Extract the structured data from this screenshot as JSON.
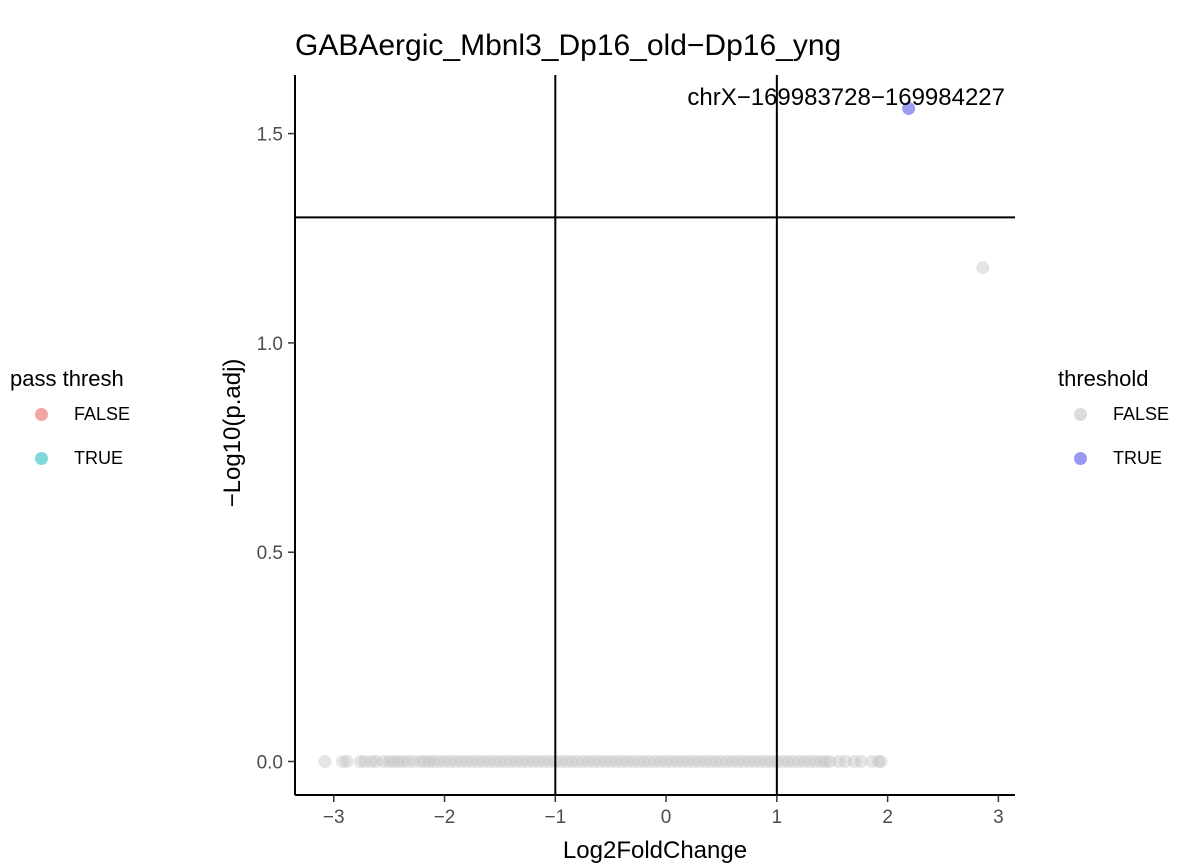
{
  "chart_data": {
    "type": "scatter",
    "title": "GABAergic_Mbnl3_Dp16_old−Dp16_yng",
    "xlabel": "Log2FoldChange",
    "ylabel": "−Log10(p.adj)",
    "xlim": [
      -3.35,
      3.15
    ],
    "ylim": [
      -0.08,
      1.64
    ],
    "x_ticks": [
      -3,
      -2,
      -1,
      0,
      1,
      2,
      3
    ],
    "x_tick_labels": [
      "−3",
      "−2",
      "−1",
      "0",
      "1",
      "2",
      "3"
    ],
    "y_ticks": [
      0.0,
      0.5,
      1.0,
      1.5
    ],
    "y_tick_labels": [
      "0.0",
      "0.5",
      "1.0",
      "1.5"
    ],
    "reference_lines": {
      "vertical": [
        -1,
        1
      ],
      "horizontal": [
        1.3
      ]
    },
    "grid": false,
    "colors": {
      "threshold_false": "#bdbdbd",
      "threshold_true": "#7b7bf0",
      "pass_false": "#f4a6a6",
      "pass_true": "#7fd9d9"
    },
    "points_false": {
      "x": [
        -3.08,
        -2.92,
        -2.88,
        -2.76,
        -2.72,
        -2.66,
        -2.62,
        -2.55,
        -2.5,
        -2.46,
        -2.42,
        -2.38,
        -2.33,
        -2.28,
        -2.22,
        -2.18,
        -2.14,
        -2.1,
        -2.05,
        -2.0,
        -1.95,
        -1.9,
        -1.85,
        -1.8,
        -1.75,
        -1.7,
        -1.65,
        -1.6,
        -1.55,
        -1.5,
        -1.45,
        -1.4,
        -1.35,
        -1.3,
        -1.25,
        -1.2,
        -1.15,
        -1.1,
        -1.05,
        -1.0,
        -0.95,
        -0.9,
        -0.85,
        -0.8,
        -0.75,
        -0.7,
        -0.65,
        -0.6,
        -0.55,
        -0.5,
        -0.45,
        -0.4,
        -0.35,
        -0.3,
        -0.25,
        -0.2,
        -0.15,
        -0.1,
        -0.05,
        0.0,
        0.05,
        0.1,
        0.15,
        0.2,
        0.25,
        0.3,
        0.35,
        0.4,
        0.45,
        0.5,
        0.55,
        0.6,
        0.65,
        0.7,
        0.75,
        0.8,
        0.85,
        0.9,
        0.95,
        1.0,
        1.05,
        1.1,
        1.15,
        1.2,
        1.25,
        1.3,
        1.35,
        1.4,
        1.44,
        1.48,
        1.56,
        1.62,
        1.7,
        1.76,
        1.86,
        1.92,
        1.94,
        2.86
      ],
      "y": [
        0.0,
        0.0,
        0.0,
        0.0,
        0.0,
        0.0,
        0.0,
        0.0,
        0.0,
        0.0,
        0.0,
        0.0,
        0.0,
        0.0,
        0.0,
        0.0,
        0.0,
        0.0,
        0.0,
        0.0,
        0.0,
        0.0,
        0.0,
        0.0,
        0.0,
        0.0,
        0.0,
        0.0,
        0.0,
        0.0,
        0.0,
        0.0,
        0.0,
        0.0,
        0.0,
        0.0,
        0.0,
        0.0,
        0.0,
        0.0,
        0.0,
        0.0,
        0.0,
        0.0,
        0.0,
        0.0,
        0.0,
        0.0,
        0.0,
        0.0,
        0.0,
        0.0,
        0.0,
        0.0,
        0.0,
        0.0,
        0.0,
        0.0,
        0.0,
        0.0,
        0.0,
        0.0,
        0.0,
        0.0,
        0.0,
        0.0,
        0.0,
        0.0,
        0.0,
        0.0,
        0.0,
        0.0,
        0.0,
        0.0,
        0.0,
        0.0,
        0.0,
        0.0,
        0.0,
        0.0,
        0.0,
        0.0,
        0.0,
        0.0,
        0.0,
        0.0,
        0.0,
        0.0,
        0.0,
        0.0,
        0.0,
        0.0,
        0.0,
        0.0,
        0.0,
        0.0,
        0.0,
        1.18
      ]
    },
    "points_true": {
      "x": [
        2.19
      ],
      "y": [
        1.56
      ]
    },
    "annotation": {
      "text": "chrX−169983728−169984227",
      "x": 2.19,
      "y": 1.56
    }
  },
  "legends": {
    "pass_thresh": {
      "title": "pass thresh",
      "items": [
        {
          "label": "FALSE",
          "color": "#f4a6a6"
        },
        {
          "label": "TRUE",
          "color": "#7fd9d9"
        }
      ]
    },
    "threshold": {
      "title": "threshold",
      "items": [
        {
          "label": "FALSE",
          "color": "#dcdcdc"
        },
        {
          "label": "TRUE",
          "color": "#9999f2"
        }
      ]
    }
  }
}
